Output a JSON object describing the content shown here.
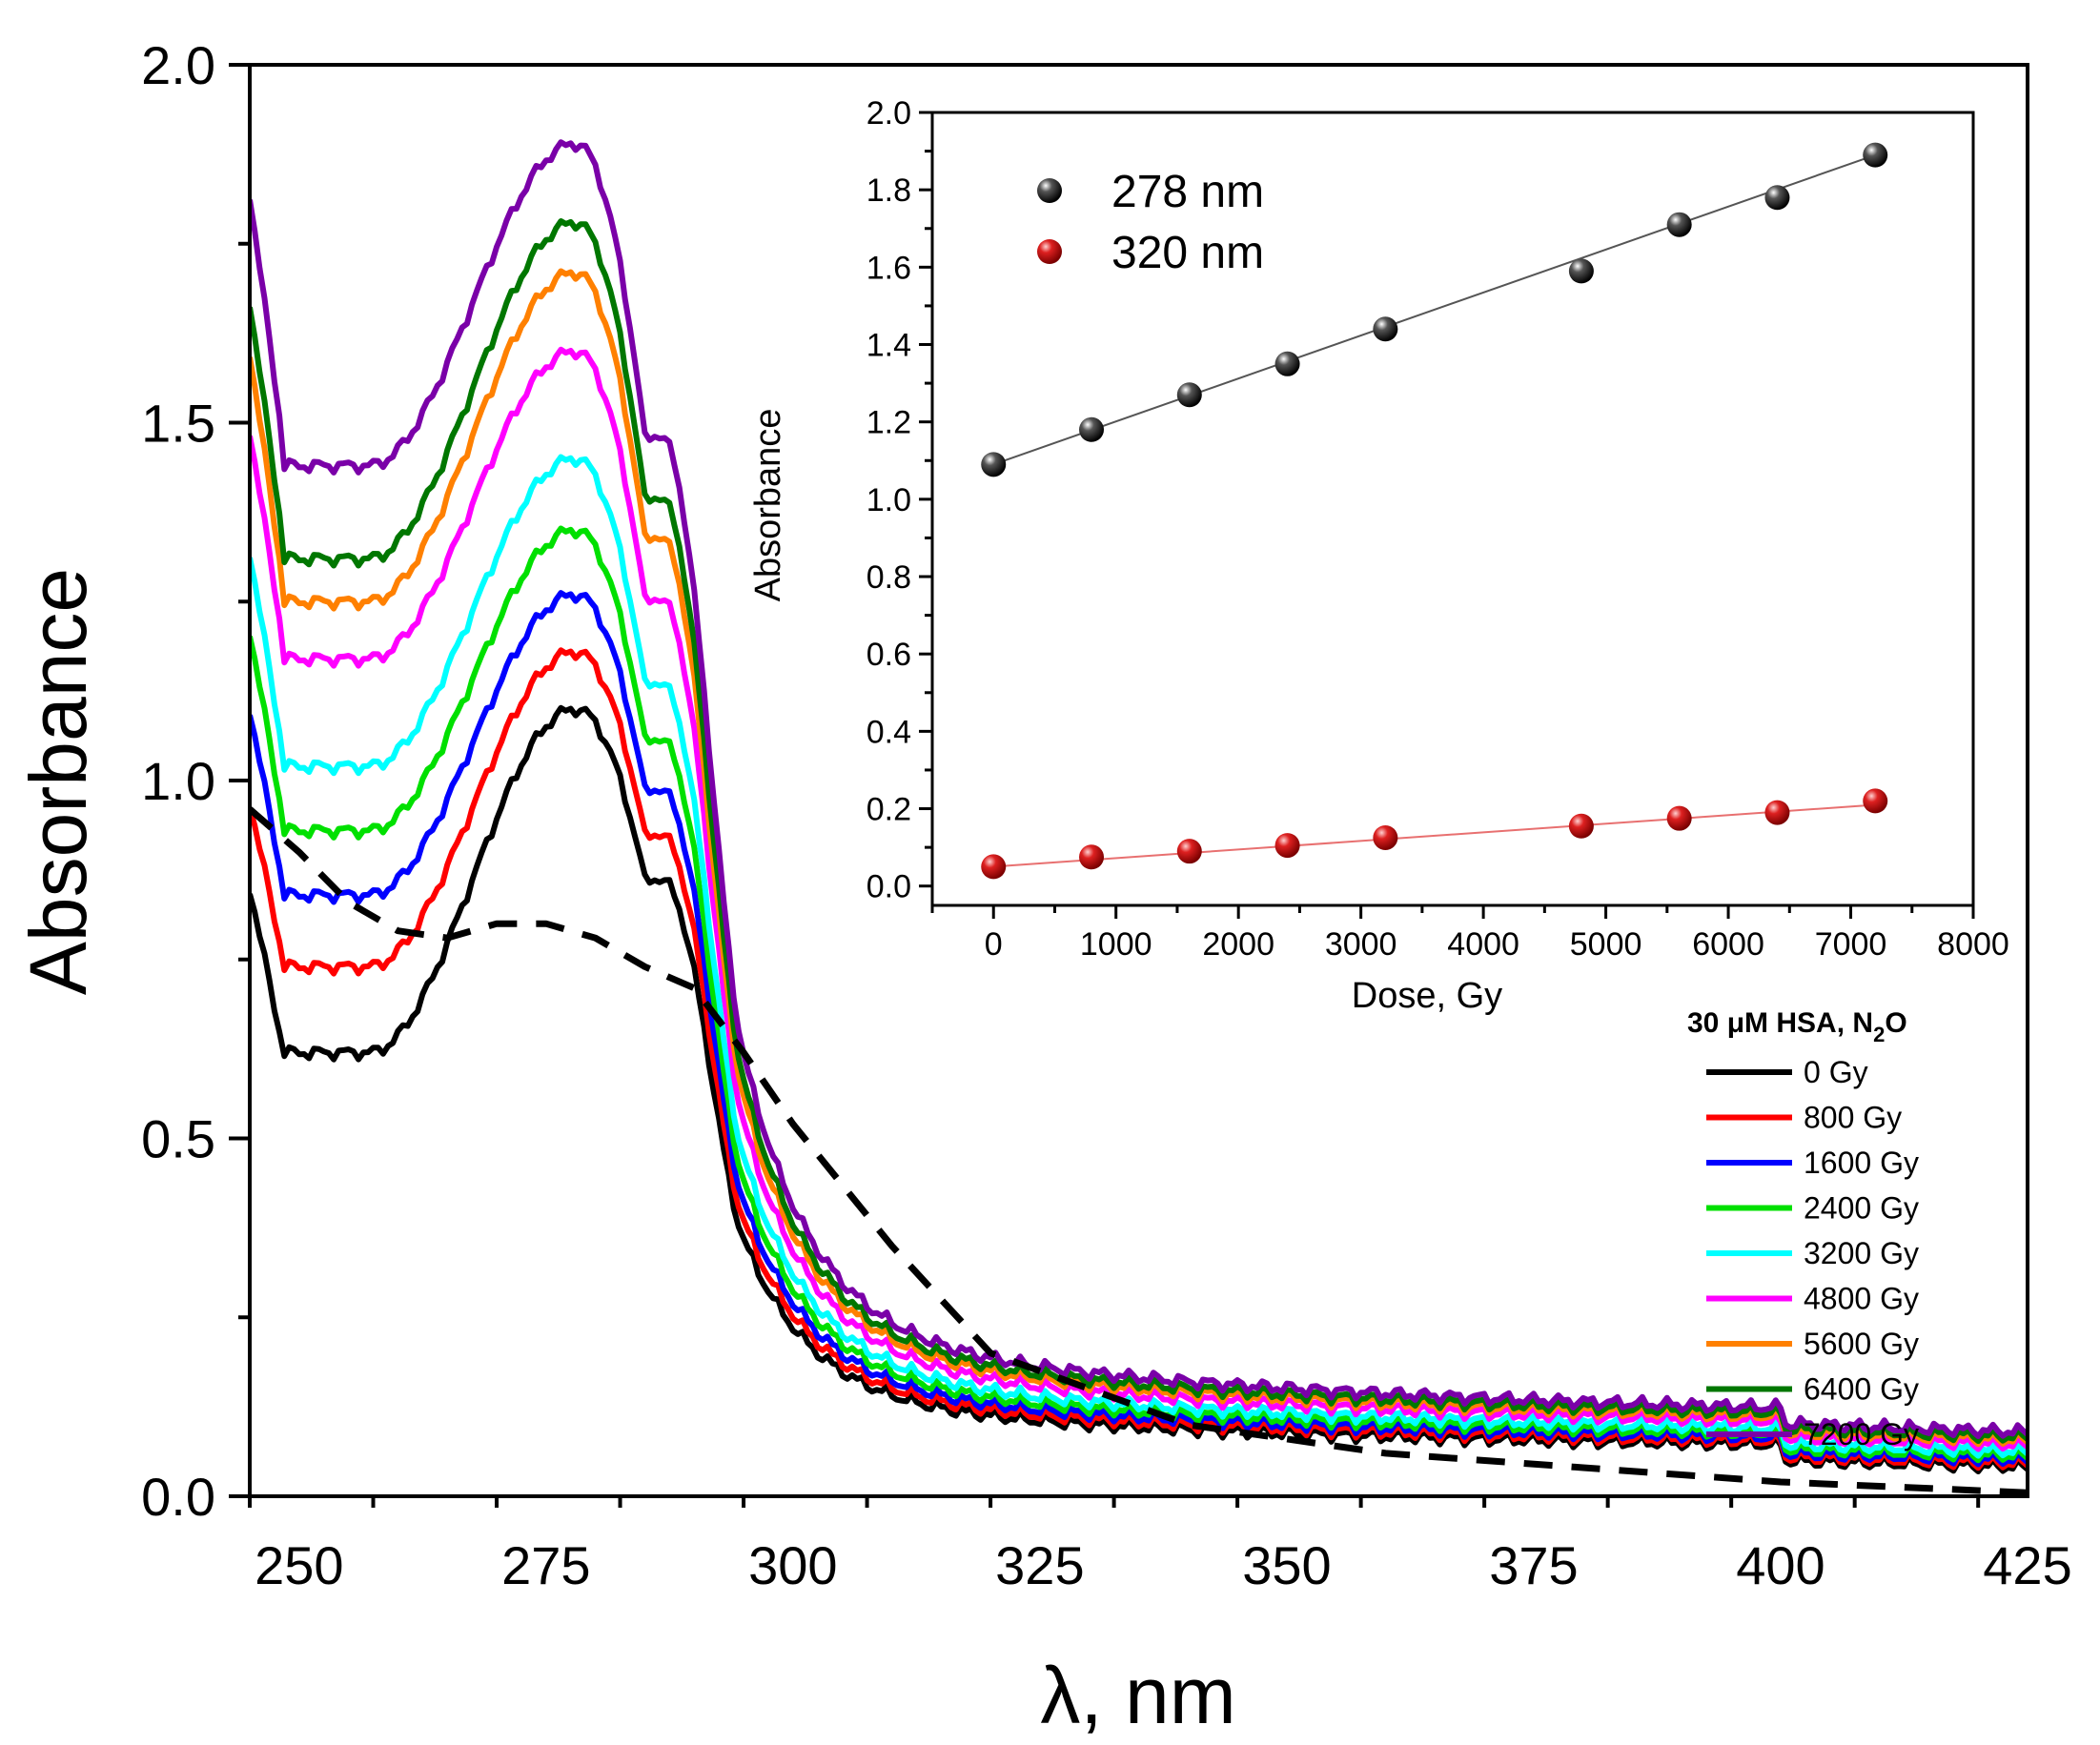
{
  "chart_data": [
    {
      "type": "line",
      "name": "main-spectra",
      "xlabel": "λ, nm",
      "ylabel": "Absorbance",
      "xlim": [
        245,
        425
      ],
      "ylim": [
        0,
        2.0
      ],
      "xticks": [
        250,
        275,
        300,
        325,
        350,
        375,
        400,
        425
      ],
      "yticks": [
        0.0,
        0.5,
        1.0,
        1.5,
        2.0
      ],
      "ytick_labels": [
        "0.0",
        "0.5",
        "1.0",
        "1.5",
        "2.0"
      ],
      "grid": false,
      "legend_title": "30 μM HSA, N2O",
      "legend_title_parts": {
        "main": "30 μM HSA, N",
        "sub": "2",
        "tail": "O"
      },
      "legend_position": "bottom-right",
      "series": [
        {
          "name": "0 Gy",
          "label": " 0 Gy",
          "color": "#000000",
          "A278": 1.1,
          "A255": 0.62,
          "A245": 0.85
        },
        {
          "name": "800 Gy",
          "label": " 800 Gy",
          "color": "#ff0000",
          "A278": 1.18,
          "A255": 0.74,
          "A245": 0.97
        },
        {
          "name": "1600 Gy",
          "label": "1600 Gy",
          "color": "#0000ff",
          "A278": 1.26,
          "A255": 0.84,
          "A245": 1.1
        },
        {
          "name": "2400 Gy",
          "label": "2400 Gy",
          "color": "#00e000",
          "A278": 1.35,
          "A255": 0.93,
          "A245": 1.21
        },
        {
          "name": "3200 Gy",
          "label": "3200 Gy",
          "color": "#00ffff",
          "A278": 1.45,
          "A255": 1.02,
          "A245": 1.32
        },
        {
          "name": "4800 Gy",
          "label": "4800 Gy",
          "color": "#ff00ff",
          "A278": 1.6,
          "A255": 1.17,
          "A245": 1.49
        },
        {
          "name": "5600 Gy",
          "label": "5600 Gy",
          "color": "#ff8000",
          "A278": 1.71,
          "A255": 1.25,
          "A245": 1.6
        },
        {
          "name": "6400 Gy",
          "label": "6400 Gy",
          "color": "#007700",
          "A278": 1.78,
          "A255": 1.31,
          "A245": 1.67
        },
        {
          "name": "7200 Gy",
          "label": "7200 Gy",
          "color": "#7a00a8",
          "A278": 1.89,
          "A255": 1.44,
          "A245": 1.82
        }
      ],
      "dashed_series": {
        "name": "dashed-reference",
        "color": "#000000",
        "x": [
          245,
          250,
          255,
          260,
          265,
          270,
          275,
          280,
          285,
          290,
          295,
          300,
          310,
          320,
          340,
          360,
          380,
          400,
          425
        ],
        "y": [
          0.96,
          0.9,
          0.83,
          0.79,
          0.78,
          0.8,
          0.8,
          0.78,
          0.74,
          0.71,
          0.62,
          0.52,
          0.35,
          0.2,
          0.1,
          0.06,
          0.04,
          0.02,
          0.005
        ]
      }
    },
    {
      "type": "scatter",
      "name": "inset-dose",
      "xlabel": "Dose, Gy",
      "ylabel": "Absorbance",
      "xlim": [
        -500,
        8000
      ],
      "ylim": [
        -0.05,
        2.0
      ],
      "xticks": [
        0,
        1000,
        2000,
        3000,
        4000,
        5000,
        6000,
        7000,
        8000
      ],
      "yticks": [
        0.0,
        0.2,
        0.4,
        0.6,
        0.8,
        1.0,
        1.2,
        1.4,
        1.6,
        1.8,
        2.0
      ],
      "ytick_labels": [
        "0.0",
        "0.2",
        "0.4",
        "0.6",
        "0.8",
        "1.0",
        "1.2",
        "1.4",
        "1.6",
        "1.8",
        "2.0"
      ],
      "legend_position": "top-left",
      "series": [
        {
          "name": "278 nm",
          "color": "#111111",
          "x": [
            0,
            800,
            1600,
            2400,
            3200,
            4800,
            5600,
            6400,
            7200
          ],
          "y": [
            1.09,
            1.18,
            1.27,
            1.35,
            1.44,
            1.59,
            1.71,
            1.78,
            1.89
          ],
          "fit": [
            1.09,
            1.89
          ]
        },
        {
          "name": "320 nm",
          "color": "#c81010",
          "x": [
            0,
            800,
            1600,
            2400,
            3200,
            4800,
            5600,
            6400,
            7200
          ],
          "y": [
            0.05,
            0.075,
            0.09,
            0.105,
            0.125,
            0.155,
            0.175,
            0.19,
            0.22
          ],
          "fit": [
            0.05,
            0.21
          ]
        }
      ]
    }
  ]
}
